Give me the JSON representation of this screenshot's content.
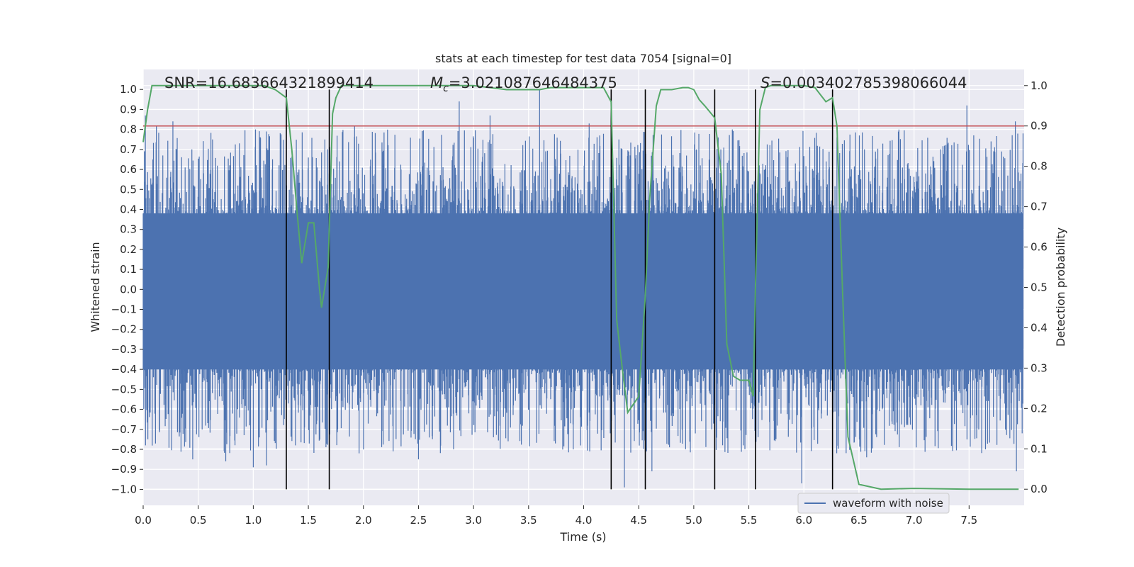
{
  "chart_data": {
    "type": "line",
    "title": "stats at each timestep for test data 7054 [signal=0]",
    "xlabel": "Time (s)",
    "ylabel_left": "Whitened strain",
    "ylabel_right": "Detection probability",
    "xlim": [
      0.0,
      8.0
    ],
    "ylim_left": [
      -1.08,
      1.1
    ],
    "ylim_right": [
      -0.04,
      1.04
    ],
    "xticks": [
      0.0,
      0.5,
      1.0,
      1.5,
      2.0,
      2.5,
      3.0,
      3.5,
      4.0,
      4.5,
      5.0,
      5.5,
      6.0,
      6.5,
      7.0,
      7.5
    ],
    "xtick_labels": [
      "0.0",
      "0.5",
      "1.0",
      "1.5",
      "2.0",
      "2.5",
      "3.0",
      "3.5",
      "4.0",
      "4.5",
      "5.0",
      "5.5",
      "6.0",
      "6.5",
      "7.0",
      "7.5"
    ],
    "yticks_left": [
      1.0,
      0.9,
      0.8,
      0.7,
      0.6,
      0.5,
      0.4,
      0.3,
      0.2,
      0.1,
      0.0,
      -0.1,
      -0.2,
      -0.3,
      -0.4,
      -0.5,
      -0.6,
      -0.7,
      -0.8,
      -0.9,
      -1.0
    ],
    "ytick_labels_left": [
      "1.0",
      "0.9",
      "0.8",
      "0.7",
      "0.6",
      "0.5",
      "0.4",
      "0.3",
      "0.2",
      "0.1",
      "0.0",
      "−0.1",
      "−0.2",
      "−0.3",
      "−0.4",
      "−0.5",
      "−0.6",
      "−0.7",
      "−0.8",
      "−0.9",
      "−1.0"
    ],
    "yticks_right": [
      1.0,
      0.9,
      0.8,
      0.7,
      0.6,
      0.5,
      0.4,
      0.3,
      0.2,
      0.1,
      0.0
    ],
    "ytick_labels_right": [
      "1.0",
      "0.9",
      "0.8",
      "0.7",
      "0.6",
      "0.5",
      "0.4",
      "0.3",
      "0.2",
      "0.1",
      "0.0"
    ],
    "grid": true,
    "legend": {
      "label": "waveform with noise",
      "placement": "lower-right"
    },
    "annotations": {
      "snr": "SNR=16.683664321899414",
      "mc_symbol": "M",
      "mc_sub": "c",
      "mc_value": "=3.021087646484375",
      "s_symbol": "S",
      "s_value": "=0.003402785398066044"
    },
    "threshold": {
      "axis": "right",
      "value": 0.9
    },
    "vertical_markers": [
      1.3,
      1.69,
      4.25,
      4.56,
      5.19,
      5.56,
      6.26
    ],
    "marker_range_left": [
      -1.0,
      1.0
    ],
    "waveform": {
      "name": "waveform with noise",
      "t_start": 0.0,
      "t_end": 7.99,
      "envelope_pos": 0.38,
      "envelope_neg": -0.4,
      "spike_peaks": [
        [
          0.02,
          0.87
        ],
        [
          0.12,
          0.82
        ],
        [
          0.27,
          0.84
        ],
        [
          0.63,
          0.75
        ],
        [
          1.02,
          0.8
        ],
        [
          1.65,
          0.75
        ],
        [
          1.92,
          0.82
        ],
        [
          2.87,
          0.94
        ],
        [
          3.15,
          0.87
        ],
        [
          3.6,
          1.0
        ],
        [
          4.05,
          0.83
        ],
        [
          4.32,
          0.75
        ],
        [
          5.35,
          0.8
        ],
        [
          6.3,
          0.76
        ],
        [
          6.55,
          0.7
        ],
        [
          7.48,
          0.92
        ],
        [
          7.92,
          0.84
        ],
        [
          7.99,
          0.78
        ]
      ],
      "spike_troughs": [
        [
          0.45,
          -0.78
        ],
        [
          0.45,
          -0.85
        ],
        [
          0.75,
          -0.86
        ],
        [
          1.0,
          -0.89
        ],
        [
          1.12,
          -0.88
        ],
        [
          2.27,
          -0.81
        ],
        [
          2.5,
          -0.85
        ],
        [
          4.37,
          -0.99
        ],
        [
          4.62,
          -0.91
        ],
        [
          5.45,
          -0.78
        ],
        [
          5.98,
          -0.97
        ],
        [
          6.26,
          -0.93
        ],
        [
          6.57,
          -0.84
        ],
        [
          7.93,
          -0.91
        ]
      ]
    },
    "probability": {
      "name": "detection probability",
      "t": [
        0.0,
        0.04,
        0.08,
        0.2,
        0.5,
        0.8,
        1.0,
        1.1,
        1.2,
        1.25,
        1.3,
        1.35,
        1.4,
        1.44,
        1.5,
        1.55,
        1.6,
        1.62,
        1.68,
        1.72,
        1.75,
        1.8,
        2.0,
        2.5,
        3.0,
        3.3,
        3.5,
        3.6,
        3.7,
        3.8,
        4.0,
        4.18,
        4.25,
        4.3,
        4.35,
        4.4,
        4.5,
        4.56,
        4.6,
        4.66,
        4.7,
        4.8,
        4.9,
        4.95,
        5.0,
        5.05,
        5.1,
        5.19,
        5.25,
        5.3,
        5.36,
        5.42,
        5.5,
        5.54,
        5.56,
        5.6,
        5.65,
        5.7,
        5.8,
        6.0,
        6.1,
        6.2,
        6.26,
        6.3,
        6.35,
        6.4,
        6.5,
        6.7,
        7.0,
        7.5,
        7.95
      ],
      "p": [
        0.86,
        0.94,
        1.0,
        1.0,
        1.0,
        1.0,
        1.0,
        1.0,
        0.99,
        0.98,
        0.97,
        0.84,
        0.68,
        0.56,
        0.66,
        0.66,
        0.5,
        0.45,
        0.55,
        0.93,
        0.97,
        1.0,
        1.0,
        1.0,
        1.0,
        0.99,
        0.99,
        0.99,
        0.995,
        0.995,
        0.995,
        0.995,
        0.96,
        0.42,
        0.3,
        0.19,
        0.23,
        0.48,
        0.72,
        0.95,
        0.99,
        0.99,
        0.995,
        0.995,
        0.99,
        0.965,
        0.95,
        0.92,
        0.78,
        0.36,
        0.28,
        0.27,
        0.27,
        0.23,
        0.5,
        0.94,
        0.995,
        1.0,
        1.0,
        1.0,
        0.995,
        0.96,
        0.97,
        0.9,
        0.5,
        0.13,
        0.012,
        0.0,
        0.002,
        0.0,
        0.0
      ]
    }
  }
}
